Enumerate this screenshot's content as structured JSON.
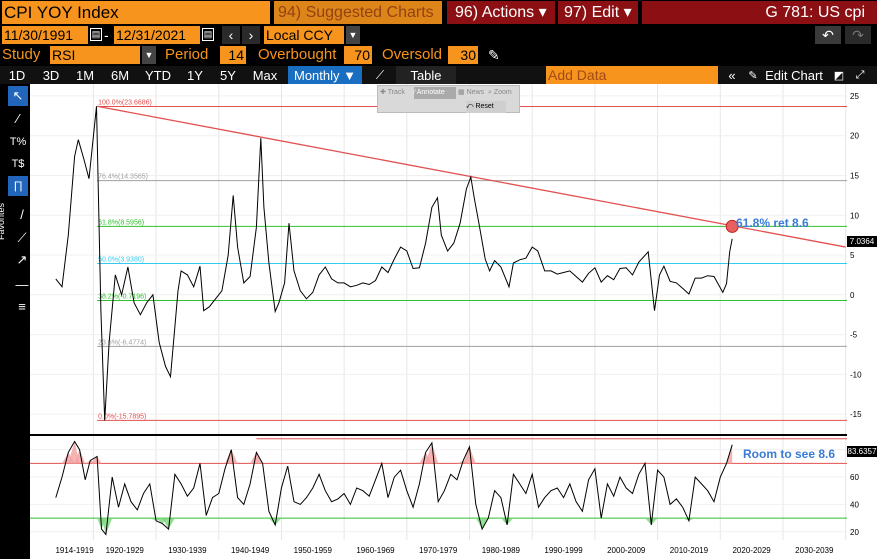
{
  "header": {
    "security": "CPI YOY Index",
    "suggested": "94) Suggested Charts",
    "actions": "96) Actions ▾",
    "edit": "97) Edit ▾",
    "page": "G 781: US cpi"
  },
  "dates": {
    "start": "11/30/1991",
    "end": "12/31/2021",
    "currency": "Local CCY"
  },
  "study": {
    "label": "Study",
    "name": "RSI",
    "period_label": "Period",
    "period": "14",
    "overbought_label": "Overbought",
    "overbought": "70",
    "oversold_label": "Oversold",
    "oversold": "30"
  },
  "toolbar": {
    "periods": [
      "1D",
      "3D",
      "1M",
      "6M",
      "YTD",
      "1Y",
      "5Y",
      "Max"
    ],
    "frequency": "Monthly ▼",
    "table": "Table",
    "add_data": "Add Data",
    "edit_chart": "Edit Chart"
  },
  "mini_toolbar": {
    "track": "Track",
    "annotate": "Annotate",
    "news": "News",
    "zoom": "Zoom",
    "reset": "Reset"
  },
  "side_label": "Favorites",
  "annotations": {
    "ret": "61.8% ret 8.6",
    "rsi_note": "Room to see 8.6"
  },
  "fib_labels": {
    "f100": "100.0%(23.6686)",
    "f764": "76.4%(14.3565)",
    "f618": "61.8%(8.5956)",
    "f50": "50.0%(3.9380)",
    "f382": "38.2%(-0.7196)",
    "f236": "23.6%(-6.4774)",
    "f0": "0.0%(-15.7895)"
  },
  "last_values": {
    "price": "7.0364",
    "rsi": "83.6357"
  },
  "colors": {
    "orange": "#f7941d",
    "dark_red": "#8b0f13",
    "fib_red": "#e35050",
    "fib_green": "#2fc12f",
    "fib_cyan": "#33ccee",
    "fib_gray": "#a0a0a0"
  },
  "chart_data": {
    "type": "line",
    "title": "CPI YOY Index",
    "x_tick_labels": [
      "1914-1919",
      "1920-1929",
      "1930-1939",
      "1940-1949",
      "1950-1959",
      "1960-1969",
      "1970-1979",
      "1980-1989",
      "1990-1999",
      "2000-2009",
      "2010-2019",
      "2020-2029",
      "2030-2039"
    ],
    "y_ticks": [
      -15,
      -10,
      -5,
      0,
      5,
      10,
      15,
      20,
      25
    ],
    "ylim": [
      -17.5,
      26.5
    ],
    "series": [
      {
        "name": "CPI YOY",
        "x": [
          1914.0,
          1915.0,
          1916.0,
          1917.0,
          1917.6,
          1918.5,
          1919.3,
          1920.5,
          1921.2,
          1921.8,
          1922.5,
          1923.5,
          1924.5,
          1925.5,
          1926.5,
          1927.5,
          1928.5,
          1929.5,
          1930.5,
          1931.5,
          1932.3,
          1932.9,
          1933.5,
          1934.0,
          1935.0,
          1936.0,
          1937.0,
          1937.6,
          1938.5,
          1939.5,
          1940.5,
          1941.5,
          1942.3,
          1943.0,
          1944.0,
          1945.0,
          1946.0,
          1946.7,
          1947.2,
          1948.0,
          1949.0,
          1949.6,
          1950.5,
          1951.2,
          1952.0,
          1953.0,
          1954.0,
          1955.0,
          1956.0,
          1957.0,
          1958.0,
          1959.0,
          1960.0,
          1961.0,
          1962.0,
          1963.0,
          1964.0,
          1965.0,
          1966.0,
          1967.0,
          1968.0,
          1969.0,
          1970.0,
          1971.0,
          1972.0,
          1973.0,
          1974.0,
          1974.9,
          1975.5,
          1976.5,
          1977.5,
          1978.5,
          1979.5,
          1980.2,
          1980.8,
          1981.5,
          1982.5,
          1983.2,
          1984.0,
          1985.0,
          1986.3,
          1987.0,
          1988.0,
          1989.0,
          1990.0,
          1990.9,
          1992.0,
          1993.0,
          1994.0,
          1995.0,
          1996.0,
          1997.0,
          1998.0,
          1999.0,
          2000.0,
          2001.0,
          2002.0,
          2003.0,
          2004.0,
          2005.0,
          2006.0,
          2007.0,
          2008.5,
          2009.5,
          2010.3,
          2011.0,
          2012.0,
          2013.0,
          2014.0,
          2015.0,
          2016.0,
          2017.0,
          2018.0,
          2019.0,
          2020.4,
          2021.0,
          2021.5,
          2021.9
        ],
        "values": [
          2.0,
          1.0,
          7.5,
          17.4,
          19.5,
          17.0,
          14.6,
          23.7,
          -2.0,
          -15.8,
          -6.0,
          2.5,
          0.0,
          3.5,
          -1.0,
          -2.5,
          -1.0,
          0.0,
          -6.0,
          -9.0,
          -10.3,
          -5.0,
          0.5,
          3.0,
          2.5,
          1.0,
          3.6,
          -2.0,
          -1.5,
          -0.5,
          0.5,
          5.0,
          12.5,
          6.0,
          1.5,
          2.3,
          8.5,
          19.7,
          11.0,
          4.0,
          -2.1,
          -1.0,
          1.5,
          9.0,
          3.0,
          0.5,
          -0.5,
          0.3,
          2.5,
          3.5,
          2.0,
          1.5,
          1.5,
          1.0,
          1.2,
          1.5,
          1.3,
          1.8,
          3.5,
          2.8,
          4.5,
          6.0,
          5.5,
          3.3,
          3.4,
          6.5,
          11.0,
          12.2,
          7.5,
          5.5,
          6.5,
          9.0,
          13.3,
          14.8,
          12.0,
          9.0,
          4.5,
          3.0,
          4.3,
          3.5,
          1.0,
          4.0,
          4.4,
          4.6,
          6.0,
          5.5,
          3.0,
          3.0,
          2.6,
          2.8,
          3.0,
          2.3,
          1.6,
          2.7,
          3.4,
          1.6,
          2.4,
          1.9,
          3.3,
          3.4,
          2.5,
          4.1,
          5.4,
          -2.0,
          2.5,
          3.6,
          1.7,
          1.5,
          0.8,
          0.1,
          2.1,
          2.1,
          2.4,
          2.3,
          0.3,
          1.4,
          5.4,
          7.04
        ]
      },
      {
        "name": "RSI",
        "x": [
          1914.0,
          1915.0,
          1916.0,
          1917.0,
          1917.8,
          1918.7,
          1919.5,
          1920.6,
          1921.3,
          1922.0,
          1923.0,
          1924.0,
          1925.0,
          1926.0,
          1927.0,
          1928.0,
          1929.0,
          1930.0,
          1931.0,
          1932.0,
          1933.0,
          1934.0,
          1935.0,
          1936.0,
          1937.0,
          1938.0,
          1939.0,
          1940.0,
          1941.0,
          1942.0,
          1943.0,
          1944.0,
          1945.0,
          1946.0,
          1947.0,
          1948.0,
          1949.0,
          1950.0,
          1951.0,
          1952.0,
          1953.0,
          1954.0,
          1955.0,
          1956.0,
          1957.0,
          1958.0,
          1959.0,
          1960.0,
          1961.0,
          1962.0,
          1963.0,
          1964.0,
          1965.0,
          1966.0,
          1967.0,
          1968.0,
          1969.0,
          1970.0,
          1971.0,
          1972.0,
          1973.0,
          1974.0,
          1975.0,
          1976.0,
          1977.0,
          1978.0,
          1979.0,
          1980.0,
          1981.0,
          1982.0,
          1983.0,
          1984.0,
          1985.0,
          1986.0,
          1987.0,
          1988.0,
          1989.0,
          1990.0,
          1991.0,
          1992.0,
          1993.0,
          1994.0,
          1995.0,
          1996.0,
          1997.0,
          1998.0,
          1999.0,
          2000.0,
          2001.0,
          2002.0,
          2003.0,
          2004.0,
          2005.0,
          2006.0,
          2007.0,
          2008.0,
          2009.0,
          2010.0,
          2011.0,
          2012.0,
          2013.0,
          2014.0,
          2015.0,
          2016.0,
          2017.0,
          2018.0,
          2019.0,
          2020.0,
          2021.0,
          2021.9
        ],
        "values": [
          45,
          60,
          78,
          86,
          80,
          58,
          72,
          75,
          22,
          18,
          60,
          38,
          55,
          42,
          36,
          48,
          55,
          28,
          26,
          22,
          62,
          55,
          46,
          52,
          70,
          32,
          45,
          48,
          66,
          80,
          45,
          40,
          55,
          78,
          70,
          35,
          25,
          52,
          68,
          42,
          40,
          45,
          52,
          62,
          50,
          42,
          44,
          48,
          40,
          52,
          50,
          46,
          58,
          70,
          45,
          60,
          65,
          50,
          38,
          55,
          78,
          85,
          42,
          50,
          62,
          58,
          72,
          82,
          40,
          22,
          30,
          50,
          45,
          25,
          62,
          55,
          48,
          62,
          38,
          45,
          50,
          52,
          45,
          55,
          42,
          35,
          58,
          66,
          30,
          55,
          46,
          60,
          52,
          48,
          62,
          70,
          25,
          65,
          60,
          40,
          44,
          38,
          28,
          60,
          55,
          50,
          42,
          60,
          70,
          83.6
        ]
      }
    ],
    "rsi_y_ticks": [
      20,
      40,
      60,
      80
    ],
    "rsi_ylim": [
      14,
      90
    ],
    "rsi_overbought": 70,
    "rsi_oversold": 30,
    "fib_levels": [
      23.6686,
      14.3565,
      8.5956,
      3.938,
      -0.7196,
      -6.4774,
      -15.7895
    ],
    "trendline": {
      "x": [
        1920.6,
        2040.0
      ],
      "y": [
        23.7,
        6.0
      ]
    },
    "grid": "vertical-and-horizontal"
  }
}
